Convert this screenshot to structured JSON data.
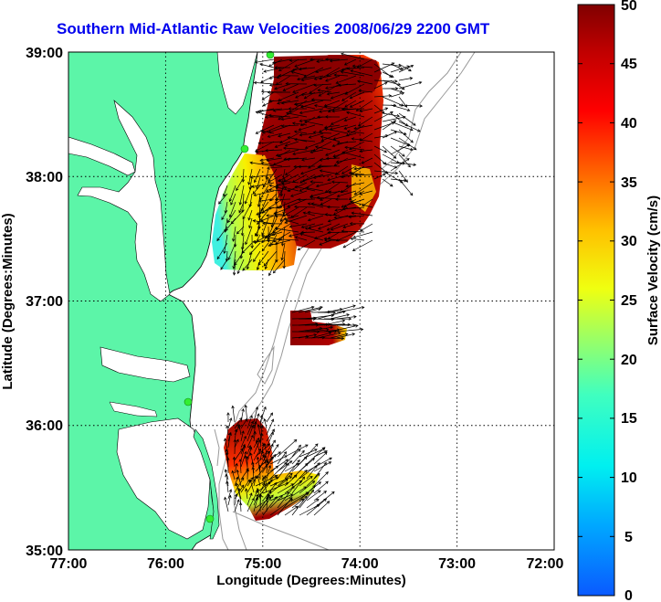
{
  "title": "Southern Mid-Atlantic Raw Velocities 2008/06/29 2200 GMT",
  "x_axis": {
    "label": "Longitude (Degrees:Minutes)",
    "ticks": [
      "77:00",
      "76:00",
      "75:00",
      "74:00",
      "73:00",
      "72:00"
    ]
  },
  "y_axis": {
    "label": "Latitude (Degrees:Minutes)",
    "ticks": [
      "39:00",
      "38:00",
      "37:00",
      "36:00",
      "35:00"
    ]
  },
  "colorbar": {
    "label": "Surface Velocity (cm/s)",
    "ticks": [
      "50",
      "45",
      "40",
      "35",
      "30",
      "25",
      "20",
      "15",
      "10",
      "5",
      "0"
    ],
    "range": [
      0,
      50
    ]
  },
  "colors": {
    "land": "#5cf5a8",
    "title": "#0000ee",
    "grid": "#000000",
    "bathymetry": "#999999",
    "station": "#33ee33"
  },
  "stations": [
    {
      "lon": -75.05,
      "lat": 39.0
    },
    {
      "lon": -75.15,
      "lat": 38.22
    },
    {
      "lon": -75.7,
      "lat": 36.2
    },
    {
      "lon": -75.55,
      "lat": 35.2
    }
  ]
}
